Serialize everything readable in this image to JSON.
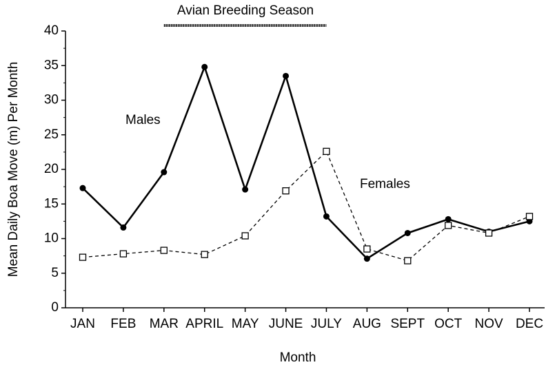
{
  "chart_data": {
    "type": "line",
    "xlabel": "Month",
    "ylabel": "Mean Daily Boa Move (m) Per Month",
    "categories": [
      "JAN",
      "FEB",
      "MAR",
      "APRIL",
      "MAY",
      "JUNE",
      "JULY",
      "AUG",
      "SEPT",
      "OCT",
      "NOV",
      "DEC"
    ],
    "series": [
      {
        "name": "Males",
        "color": "#000000",
        "line_style": "solid",
        "marker": "circle",
        "values": [
          17.3,
          11.6,
          19.6,
          34.8,
          17.1,
          33.5,
          13.2,
          7.1,
          10.8,
          12.8,
          11.0,
          12.5
        ]
      },
      {
        "name": "Females",
        "color": "#000000",
        "line_style": "dashed",
        "marker": "square",
        "values": [
          7.3,
          7.8,
          8.3,
          7.7,
          10.4,
          16.9,
          22.6,
          8.5,
          6.8,
          11.9,
          10.8,
          13.2
        ]
      }
    ],
    "ylim": [
      0,
      40
    ],
    "yticks": [
      0,
      5,
      10,
      15,
      20,
      25,
      30,
      35,
      40
    ],
    "annotations": [
      {
        "text": "Avian Breeding Season"
      }
    ],
    "grid": false
  }
}
